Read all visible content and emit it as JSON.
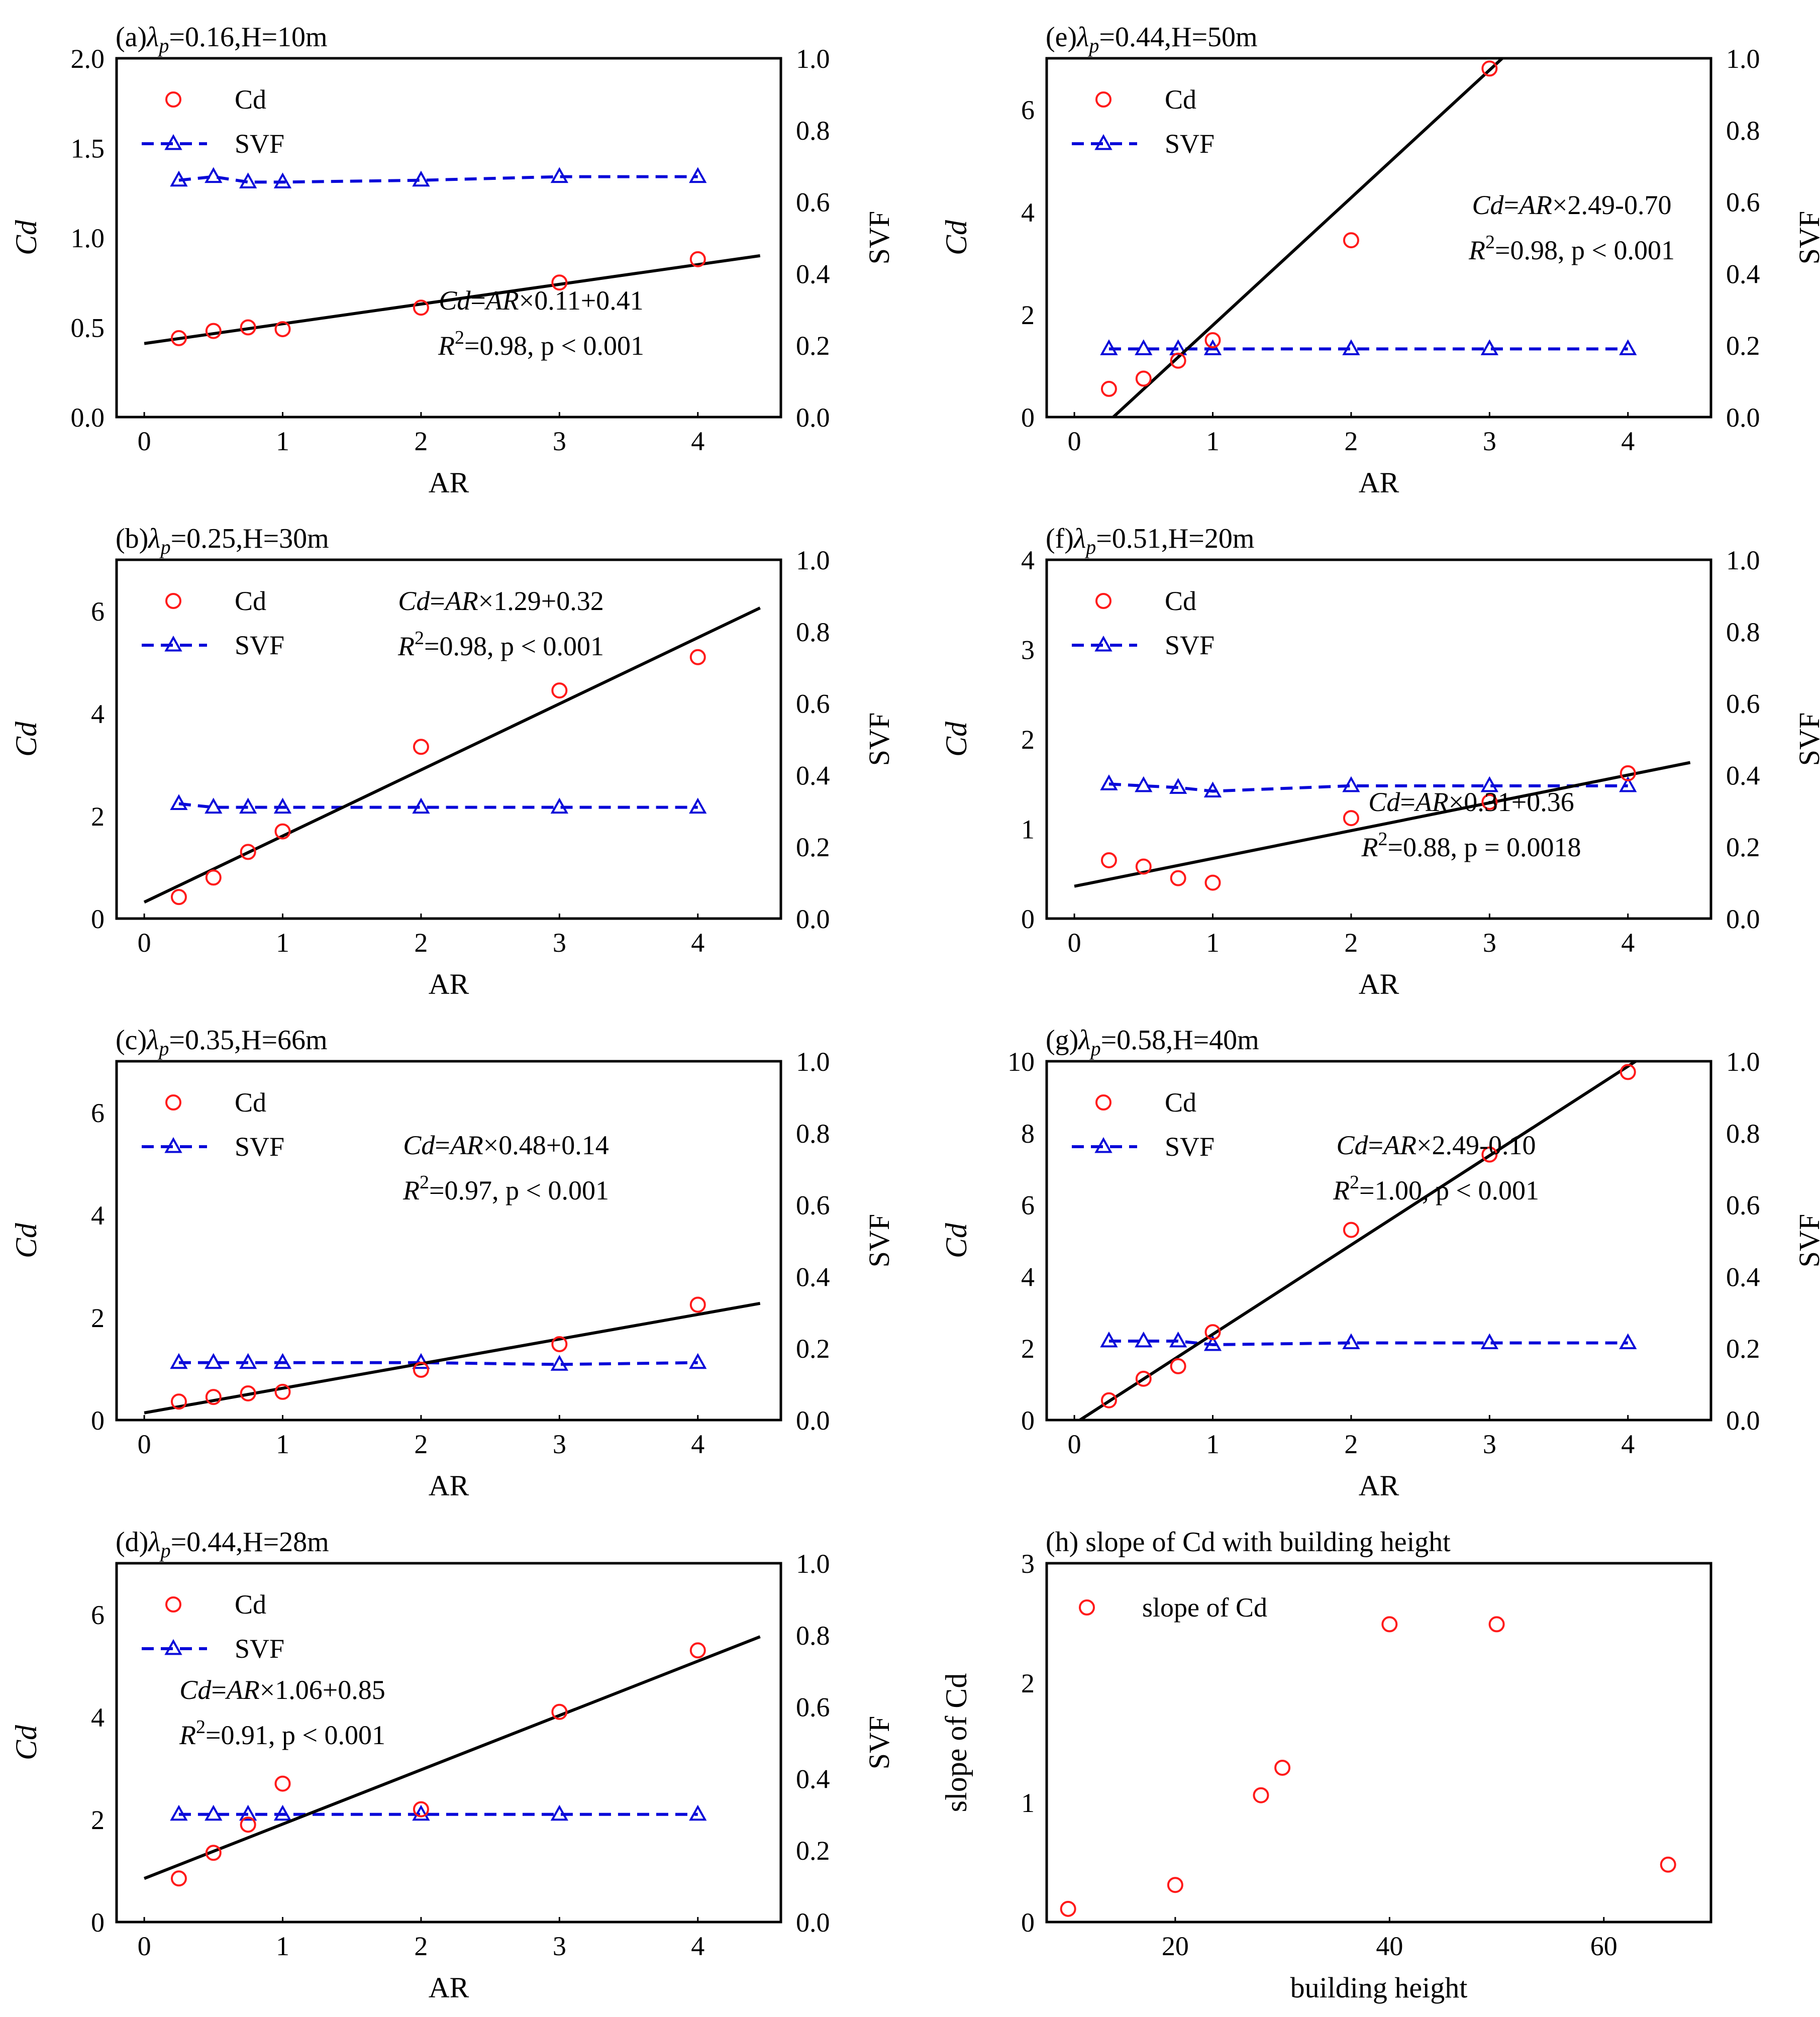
{
  "figure": {
    "legend_cd": "Cd",
    "legend_svf": "SVF"
  },
  "chart_data": [
    {
      "type": "scatter+line",
      "title_prefix": "(a)",
      "title_lambda": "λ",
      "title_sub": "p",
      "title_rest": "=0.16,H=10m",
      "xlabel": "AR",
      "ylabel": "Cd",
      "y2label": "SVF",
      "xlim": [
        -0.2,
        4.6
      ],
      "ylim": [
        0,
        2.0
      ],
      "y2lim": [
        0,
        1.0
      ],
      "xticks": [
        0,
        1,
        2,
        3,
        4
      ],
      "yticks": [
        0,
        0.5,
        1.0,
        1.5,
        2.0
      ],
      "y2ticks": [
        0,
        0.2,
        0.4,
        0.6,
        0.8,
        1.0
      ],
      "ar": [
        0.25,
        0.5,
        0.75,
        1,
        2,
        3,
        4
      ],
      "cd": [
        0.44,
        0.48,
        0.5,
        0.49,
        0.61,
        0.75,
        0.88
      ],
      "svf": [
        0.66,
        0.67,
        0.655,
        0.655,
        0.66,
        0.67,
        0.67
      ],
      "fit": {
        "slope": 0.11,
        "intercept": 0.41,
        "x_range": [
          0,
          4.45
        ]
      },
      "eq": {
        "cd": "Cd",
        "ar": "AR",
        "rest": "×0.11+0.41",
        "r": "R",
        "two": "2",
        "stats": "=0.98, p < 0.001"
      },
      "legend_pos": "top-left",
      "eq_pos": "lower-right"
    },
    {
      "type": "scatter+line",
      "title_prefix": "(b)",
      "title_lambda": "λ",
      "title_sub": "p",
      "title_rest": "=0.25,H=30m",
      "xlabel": "AR",
      "ylabel": "Cd",
      "y2label": "SVF",
      "xlim": [
        -0.2,
        4.6
      ],
      "ylim": [
        0,
        7
      ],
      "y2lim": [
        0,
        1.0
      ],
      "xticks": [
        0,
        1,
        2,
        3,
        4
      ],
      "yticks": [
        0,
        2,
        4,
        6
      ],
      "y2ticks": [
        0,
        0.2,
        0.4,
        0.6,
        0.8,
        1.0
      ],
      "ar": [
        0.25,
        0.5,
        0.75,
        1,
        2,
        3,
        4
      ],
      "cd": [
        0.42,
        0.8,
        1.3,
        1.7,
        3.35,
        4.45,
        5.1
      ],
      "svf": [
        0.32,
        0.31,
        0.31,
        0.31,
        0.31,
        0.31,
        0.31
      ],
      "fit": {
        "slope": 1.29,
        "intercept": 0.32,
        "x_range": [
          0,
          4.45
        ]
      },
      "eq": {
        "cd": "Cd",
        "ar": "AR",
        "rest": "×1.29+0.32",
        "r": "R",
        "two": "2",
        "stats": "=0.98, p < 0.001"
      },
      "legend_pos": "top-left",
      "eq_pos": "top-center"
    },
    {
      "type": "scatter+line",
      "title_prefix": "(c)",
      "title_lambda": "λ",
      "title_sub": "p",
      "title_rest": "=0.35,H=66m",
      "xlabel": "AR",
      "ylabel": "Cd",
      "y2label": "SVF",
      "xlim": [
        -0.2,
        4.6
      ],
      "ylim": [
        0,
        7
      ],
      "y2lim": [
        0,
        1.0
      ],
      "xticks": [
        0,
        1,
        2,
        3,
        4
      ],
      "yticks": [
        0,
        2,
        4,
        6
      ],
      "y2ticks": [
        0,
        0.2,
        0.4,
        0.6,
        0.8,
        1.0
      ],
      "ar": [
        0.25,
        0.5,
        0.75,
        1,
        2,
        3,
        4
      ],
      "cd": [
        0.36,
        0.45,
        0.52,
        0.55,
        0.98,
        1.48,
        2.25
      ],
      "svf": [
        0.16,
        0.16,
        0.16,
        0.16,
        0.16,
        0.155,
        0.16
      ],
      "fit": {
        "slope": 0.48,
        "intercept": 0.14,
        "x_range": [
          0,
          4.45
        ]
      },
      "eq": {
        "cd": "Cd",
        "ar": "AR",
        "rest": "×0.48+0.14",
        "r": "R",
        "two": "2",
        "stats": "=0.97, p < 0.001"
      },
      "legend_pos": "top-left",
      "eq_pos": "right-middle"
    },
    {
      "type": "scatter+line",
      "title_prefix": "(d)",
      "title_lambda": "λ",
      "title_sub": "p",
      "title_rest": "=0.44,H=28m",
      "xlabel": "AR",
      "ylabel": "Cd",
      "y2label": "SVF",
      "xlim": [
        -0.2,
        4.6
      ],
      "ylim": [
        0,
        7
      ],
      "y2lim": [
        0,
        1.0
      ],
      "xticks": [
        0,
        1,
        2,
        3,
        4
      ],
      "yticks": [
        0,
        2,
        4,
        6
      ],
      "y2ticks": [
        0,
        0.2,
        0.4,
        0.6,
        0.8,
        1.0
      ],
      "ar": [
        0.25,
        0.5,
        0.75,
        1,
        2,
        3,
        4
      ],
      "cd": [
        0.85,
        1.35,
        1.9,
        2.7,
        2.2,
        4.1,
        5.3
      ],
      "svf": [
        0.3,
        0.3,
        0.3,
        0.3,
        0.3,
        0.3,
        0.3
      ],
      "fit": {
        "slope": 1.06,
        "intercept": 0.85,
        "x_range": [
          0,
          4.45
        ]
      },
      "eq": {
        "cd": "Cd",
        "ar": "AR",
        "rest": "×1.06+0.85",
        "r": "R",
        "two": "2",
        "stats": "=0.91, p < 0.001"
      },
      "legend_pos": "top-left",
      "eq_pos": "left-middle"
    },
    {
      "type": "scatter+line",
      "title_prefix": "(e)",
      "title_lambda": "λ",
      "title_sub": "p",
      "title_rest": "=0.44,H=50m",
      "xlabel": "AR",
      "ylabel": "Cd",
      "y2label": "SVF",
      "xlim": [
        -0.2,
        4.6
      ],
      "ylim": [
        0,
        7
      ],
      "y2lim": [
        0,
        1.0
      ],
      "xticks": [
        0,
        1,
        2,
        3,
        4
      ],
      "yticks": [
        0,
        2,
        4,
        6
      ],
      "y2ticks": [
        0,
        0.2,
        0.4,
        0.6,
        0.8,
        1.0
      ],
      "ar": [
        0.25,
        0.5,
        0.75,
        1,
        2,
        3,
        4
      ],
      "cd": [
        0.55,
        0.75,
        1.1,
        1.5,
        3.45,
        6.8,
        null
      ],
      "svf": [
        0.19,
        0.19,
        0.19,
        0.19,
        0.19,
        0.19,
        0.19
      ],
      "fit": {
        "slope": 2.49,
        "intercept": -0.7,
        "x_range": [
          0,
          4.45
        ]
      },
      "eq": {
        "cd": "Cd",
        "ar": "AR",
        "rest": "×2.49-0.70",
        "r": "R",
        "two": "2",
        "stats": "=0.98, p < 0.001"
      },
      "legend_pos": "top-left",
      "eq_pos": "upper-right"
    },
    {
      "type": "scatter+line",
      "title_prefix": "(f)",
      "title_lambda": "λ",
      "title_sub": "p",
      "title_rest": "=0.51,H=20m",
      "xlabel": "AR",
      "ylabel": "Cd",
      "y2label": "SVF",
      "xlim": [
        -0.2,
        4.6
      ],
      "ylim": [
        0,
        4
      ],
      "y2lim": [
        0,
        1.0
      ],
      "xticks": [
        0,
        1,
        2,
        3,
        4
      ],
      "yticks": [
        0,
        1,
        2,
        3,
        4
      ],
      "y2ticks": [
        0,
        0.2,
        0.4,
        0.6,
        0.8,
        1.0
      ],
      "ar": [
        0.25,
        0.5,
        0.75,
        1,
        2,
        3,
        4
      ],
      "cd": [
        0.65,
        0.58,
        0.45,
        0.4,
        1.12,
        1.3,
        1.62
      ],
      "svf": [
        0.375,
        0.37,
        0.365,
        0.355,
        0.37,
        0.37,
        0.37
      ],
      "fit": {
        "slope": 0.31,
        "intercept": 0.36,
        "x_range": [
          0,
          4.45
        ]
      },
      "eq": {
        "cd": "Cd",
        "ar": "AR",
        "rest": "×0.31+0.36",
        "r": "R",
        "two": "2",
        "stats": "=0.88, p = 0.0018"
      },
      "legend_pos": "top-left",
      "eq_pos": "lower-right"
    },
    {
      "type": "scatter+line",
      "title_prefix": "(g)",
      "title_lambda": "λ",
      "title_sub": "p",
      "title_rest": "=0.58,H=40m",
      "xlabel": "AR",
      "ylabel": "Cd",
      "y2label": "SVF",
      "xlim": [
        -0.2,
        4.6
      ],
      "ylim": [
        0,
        10
      ],
      "y2lim": [
        0,
        1.0
      ],
      "xticks": [
        0,
        1,
        2,
        3,
        4
      ],
      "yticks": [
        0,
        2,
        4,
        6,
        8,
        10
      ],
      "y2ticks": [
        0,
        0.2,
        0.4,
        0.6,
        0.8,
        1.0
      ],
      "ar": [
        0.25,
        0.5,
        0.75,
        1,
        2,
        3,
        4
      ],
      "cd": [
        0.55,
        1.15,
        1.5,
        2.45,
        5.3,
        7.4,
        9.7
      ],
      "svf": [
        0.22,
        0.22,
        0.22,
        0.21,
        0.215,
        0.215,
        0.215
      ],
      "fit": {
        "slope": 2.49,
        "intercept": -0.1,
        "x_range": [
          0,
          4.45
        ]
      },
      "eq": {
        "cd": "Cd",
        "ar": "AR",
        "rest": "×2.49-0.10",
        "r": "R",
        "two": "2",
        "stats": "=1.00, p < 0.001"
      },
      "legend_pos": "top-left",
      "eq_pos": "right-middle"
    },
    {
      "type": "scatter",
      "title_prefix": "(h)",
      "title_rest": " slope of Cd with building height",
      "xlabel": "building height",
      "ylabel": "slope of Cd",
      "xlim": [
        8,
        70
      ],
      "ylim": [
        0,
        3
      ],
      "xticks": [
        20,
        40,
        60
      ],
      "yticks": [
        0,
        1,
        2,
        3
      ],
      "x": [
        10,
        20,
        28,
        30,
        40,
        50,
        66
      ],
      "y": [
        0.11,
        0.31,
        1.06,
        1.29,
        2.49,
        2.49,
        0.48
      ],
      "legend": "slope of Cd",
      "legend_pos": "top-left"
    }
  ]
}
